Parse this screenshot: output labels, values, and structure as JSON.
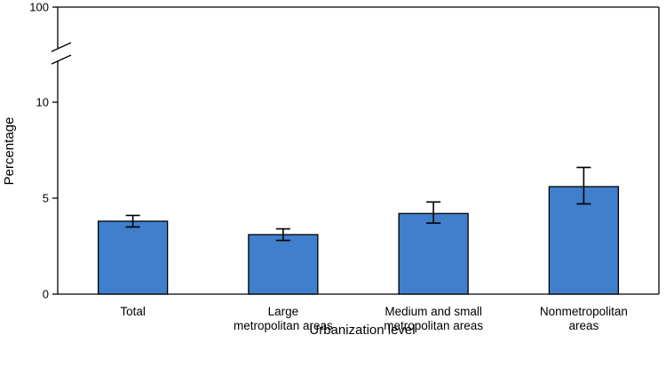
{
  "chart_data": {
    "type": "bar",
    "categories": [
      [
        "Total"
      ],
      [
        "Large",
        "metropolitan areas"
      ],
      [
        "Medium and small",
        "metropolitan areas"
      ],
      [
        "Nonmetropolitan",
        "areas"
      ]
    ],
    "values": [
      3.8,
      3.1,
      4.2,
      5.6
    ],
    "error_low": [
      3.5,
      2.8,
      3.7,
      4.7
    ],
    "error_high": [
      4.1,
      3.4,
      4.8,
      6.6
    ],
    "xlabel": "Urbanization level",
    "ylabel": "Percentage",
    "yticks": [
      0,
      5,
      10,
      100
    ],
    "ylim": [
      0,
      100
    ],
    "axis_break": true,
    "grid": false,
    "bar_color": "#3f7fcc"
  }
}
